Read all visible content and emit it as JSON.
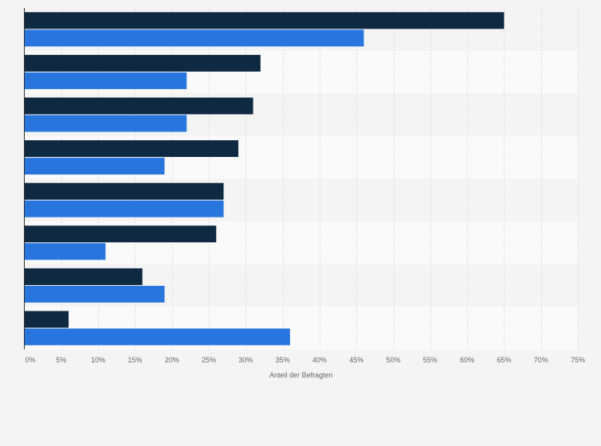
{
  "chart_data": {
    "type": "bar",
    "orientation": "horizontal",
    "title": "",
    "xlabel": "Anteil der Befragten",
    "ylabel": "",
    "xlim": [
      0,
      75
    ],
    "tick_values": [
      0,
      5,
      10,
      15,
      20,
      25,
      30,
      35,
      40,
      45,
      50,
      55,
      60,
      65,
      70,
      75
    ],
    "tick_labels": [
      "0%",
      "5%",
      "10%",
      "15%",
      "20%",
      "25%",
      "30%",
      "35%",
      "40%",
      "45%",
      "50%",
      "55%",
      "60%",
      "65%",
      "70%",
      "75%"
    ],
    "grid": true,
    "legend": "none",
    "categories": [
      "",
      "",
      "",
      "",
      "",
      "",
      "",
      ""
    ],
    "series": [
      {
        "color": "#0f2942",
        "values": [
          65,
          32,
          31,
          29,
          27,
          26,
          16,
          6
        ]
      },
      {
        "color": "#2876dd",
        "values": [
          46,
          22,
          22,
          19,
          27,
          11,
          19,
          36
        ]
      }
    ]
  }
}
